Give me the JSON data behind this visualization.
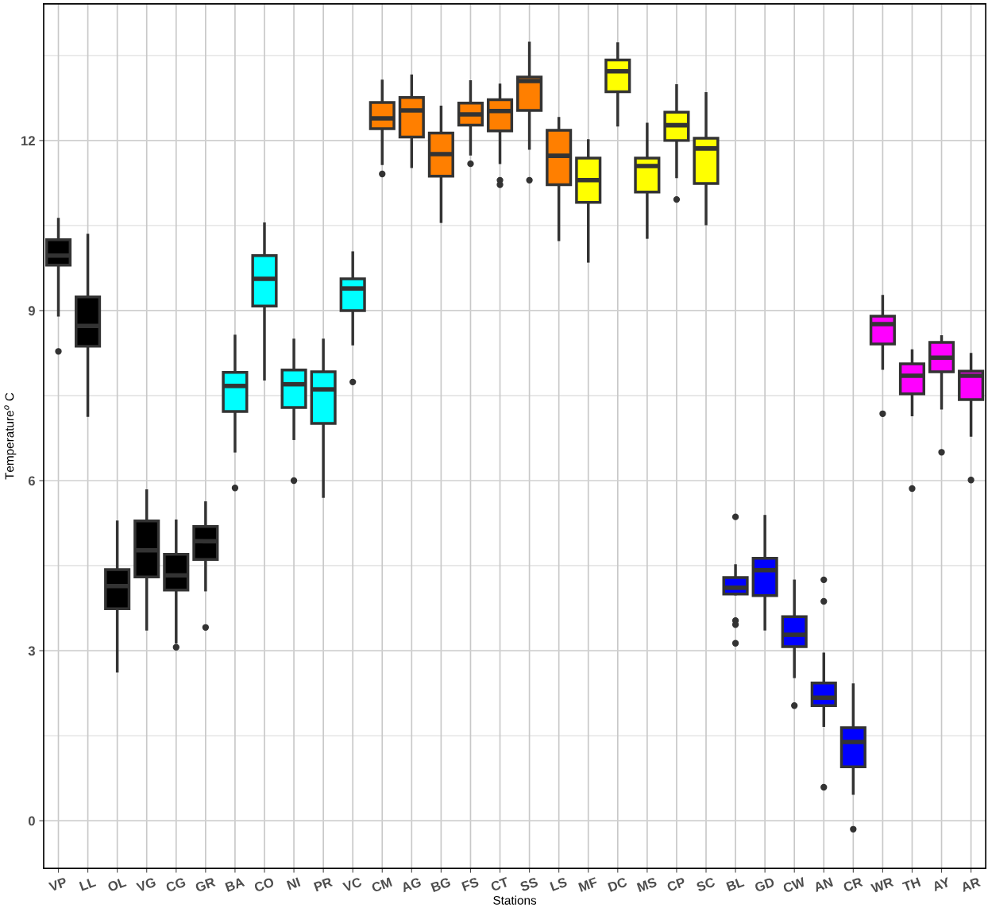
{
  "chart_data": {
    "type": "box",
    "xlabel": "Stations",
    "ylabel": "Temperature$^{o}$ C",
    "categories": [
      "VP",
      "LL",
      "OL",
      "VG",
      "CG",
      "GR",
      "BA",
      "CO",
      "NI",
      "PR",
      "VC",
      "CM",
      "AG",
      "BG",
      "FS",
      "CT",
      "SS",
      "LS",
      "MF",
      "DC",
      "MS",
      "CP",
      "SC",
      "BL",
      "GD",
      "CW",
      "AN",
      "CR",
      "WR",
      "TH",
      "AY",
      "AR"
    ],
    "colors": [
      "#000000",
      "#000000",
      "#000000",
      "#000000",
      "#000000",
      "#000000",
      "#00ffff",
      "#00ffff",
      "#00ffff",
      "#00ffff",
      "#00ffff",
      "#ff7f00",
      "#ff7f00",
      "#ff7f00",
      "#ff7f00",
      "#ff7f00",
      "#ff7f00",
      "#ff7f00",
      "#ffff00",
      "#ffff00",
      "#ffff00",
      "#ffff00",
      "#ffff00",
      "#0000ff",
      "#0000ff",
      "#0000ff",
      "#0000ff",
      "#0000ff",
      "#ff00ff",
      "#ff00ff",
      "#ff00ff",
      "#ff00ff"
    ],
    "boxes": [
      {
        "low": 8.92,
        "q1": 9.8,
        "median": 9.97,
        "q3": 10.25,
        "high": 10.61,
        "outliers": [
          8.28
        ]
      },
      {
        "low": 7.15,
        "q1": 8.37,
        "median": 8.73,
        "q3": 9.24,
        "high": 10.33
      },
      {
        "low": 2.64,
        "q1": 3.74,
        "median": 4.14,
        "q3": 4.43,
        "high": 5.27
      },
      {
        "low": 3.38,
        "q1": 4.3,
        "median": 4.77,
        "q3": 5.29,
        "high": 5.82
      },
      {
        "low": 3.15,
        "q1": 4.07,
        "median": 4.33,
        "q3": 4.7,
        "high": 5.29,
        "outliers": [
          3.06
        ]
      },
      {
        "low": 4.07,
        "q1": 4.61,
        "median": 4.93,
        "q3": 5.19,
        "high": 5.61,
        "outliers": [
          3.41
        ]
      },
      {
        "low": 6.52,
        "q1": 7.22,
        "median": 7.67,
        "q3": 7.91,
        "high": 8.55,
        "outliers": [
          5.87
        ]
      },
      {
        "low": 7.79,
        "q1": 9.08,
        "median": 9.56,
        "q3": 9.97,
        "high": 10.53
      },
      {
        "low": 6.74,
        "q1": 7.29,
        "median": 7.7,
        "q3": 7.95,
        "high": 8.48,
        "outliers": [
          6.0
        ]
      },
      {
        "low": 5.72,
        "q1": 7.01,
        "median": 7.61,
        "q3": 7.92,
        "high": 8.48
      },
      {
        "low": 8.41,
        "q1": 9.0,
        "median": 9.39,
        "q3": 9.56,
        "high": 10.02,
        "outliers": [
          7.74
        ]
      },
      {
        "low": 11.59,
        "q1": 12.21,
        "median": 12.39,
        "q3": 12.67,
        "high": 13.05,
        "outliers": [
          11.41
        ]
      },
      {
        "low": 11.54,
        "q1": 12.06,
        "median": 12.53,
        "q3": 12.76,
        "high": 13.14
      },
      {
        "low": 10.57,
        "q1": 11.37,
        "median": 11.76,
        "q3": 12.13,
        "high": 12.59
      },
      {
        "low": 11.76,
        "q1": 12.27,
        "median": 12.46,
        "q3": 12.66,
        "high": 13.04,
        "outliers": [
          11.59
        ]
      },
      {
        "low": 11.61,
        "q1": 12.17,
        "median": 12.52,
        "q3": 12.72,
        "high": 12.98,
        "outliers": [
          11.3,
          11.22
        ]
      },
      {
        "low": 11.86,
        "q1": 12.53,
        "median": 13.05,
        "q3": 13.12,
        "high": 13.72,
        "outliers": [
          11.3
        ]
      },
      {
        "low": 10.25,
        "q1": 11.22,
        "median": 11.73,
        "q3": 12.18,
        "high": 12.39
      },
      {
        "low": 9.87,
        "q1": 10.91,
        "median": 11.3,
        "q3": 11.69,
        "high": 12.0
      },
      {
        "low": 12.27,
        "q1": 12.86,
        "median": 13.22,
        "q3": 13.42,
        "high": 13.71
      },
      {
        "low": 10.29,
        "q1": 11.09,
        "median": 11.55,
        "q3": 11.69,
        "high": 12.29
      },
      {
        "low": 11.36,
        "q1": 12.0,
        "median": 12.27,
        "q3": 12.5,
        "high": 12.97,
        "outliers": [
          10.96
        ]
      },
      {
        "low": 10.53,
        "q1": 11.24,
        "median": 11.86,
        "q3": 12.04,
        "high": 12.83
      },
      {
        "low": 4.0,
        "q1": 4.0,
        "median": 4.11,
        "q3": 4.29,
        "high": 4.5,
        "outliers": [
          5.36,
          3.53,
          3.46,
          3.13
        ]
      },
      {
        "low": 3.38,
        "q1": 3.97,
        "median": 4.42,
        "q3": 4.63,
        "high": 5.37
      },
      {
        "low": 2.54,
        "q1": 3.07,
        "median": 3.28,
        "q3": 3.6,
        "high": 4.23,
        "outliers": [
          2.03
        ]
      },
      {
        "low": 1.68,
        "q1": 2.03,
        "median": 2.17,
        "q3": 2.43,
        "high": 2.94,
        "outliers": [
          4.25,
          3.87,
          0.59
        ]
      },
      {
        "low": 0.48,
        "q1": 0.95,
        "median": 1.39,
        "q3": 1.64,
        "high": 2.4,
        "outliers": [
          -0.15
        ]
      },
      {
        "low": 7.98,
        "q1": 8.41,
        "median": 8.76,
        "q3": 8.9,
        "high": 9.25,
        "outliers": [
          7.18
        ]
      },
      {
        "low": 7.16,
        "q1": 7.53,
        "median": 7.85,
        "q3": 8.06,
        "high": 8.29,
        "outliers": [
          5.86
        ]
      },
      {
        "low": 7.28,
        "q1": 7.92,
        "median": 8.17,
        "q3": 8.44,
        "high": 8.54,
        "outliers": [
          6.5
        ]
      },
      {
        "low": 6.8,
        "q1": 7.43,
        "median": 7.85,
        "q3": 7.93,
        "high": 8.23,
        "outliers": [
          6.01
        ]
      }
    ],
    "ylim": [
      -0.84,
      14.41
    ],
    "yticks": [
      0,
      3,
      6,
      9,
      12
    ],
    "grid": true
  }
}
